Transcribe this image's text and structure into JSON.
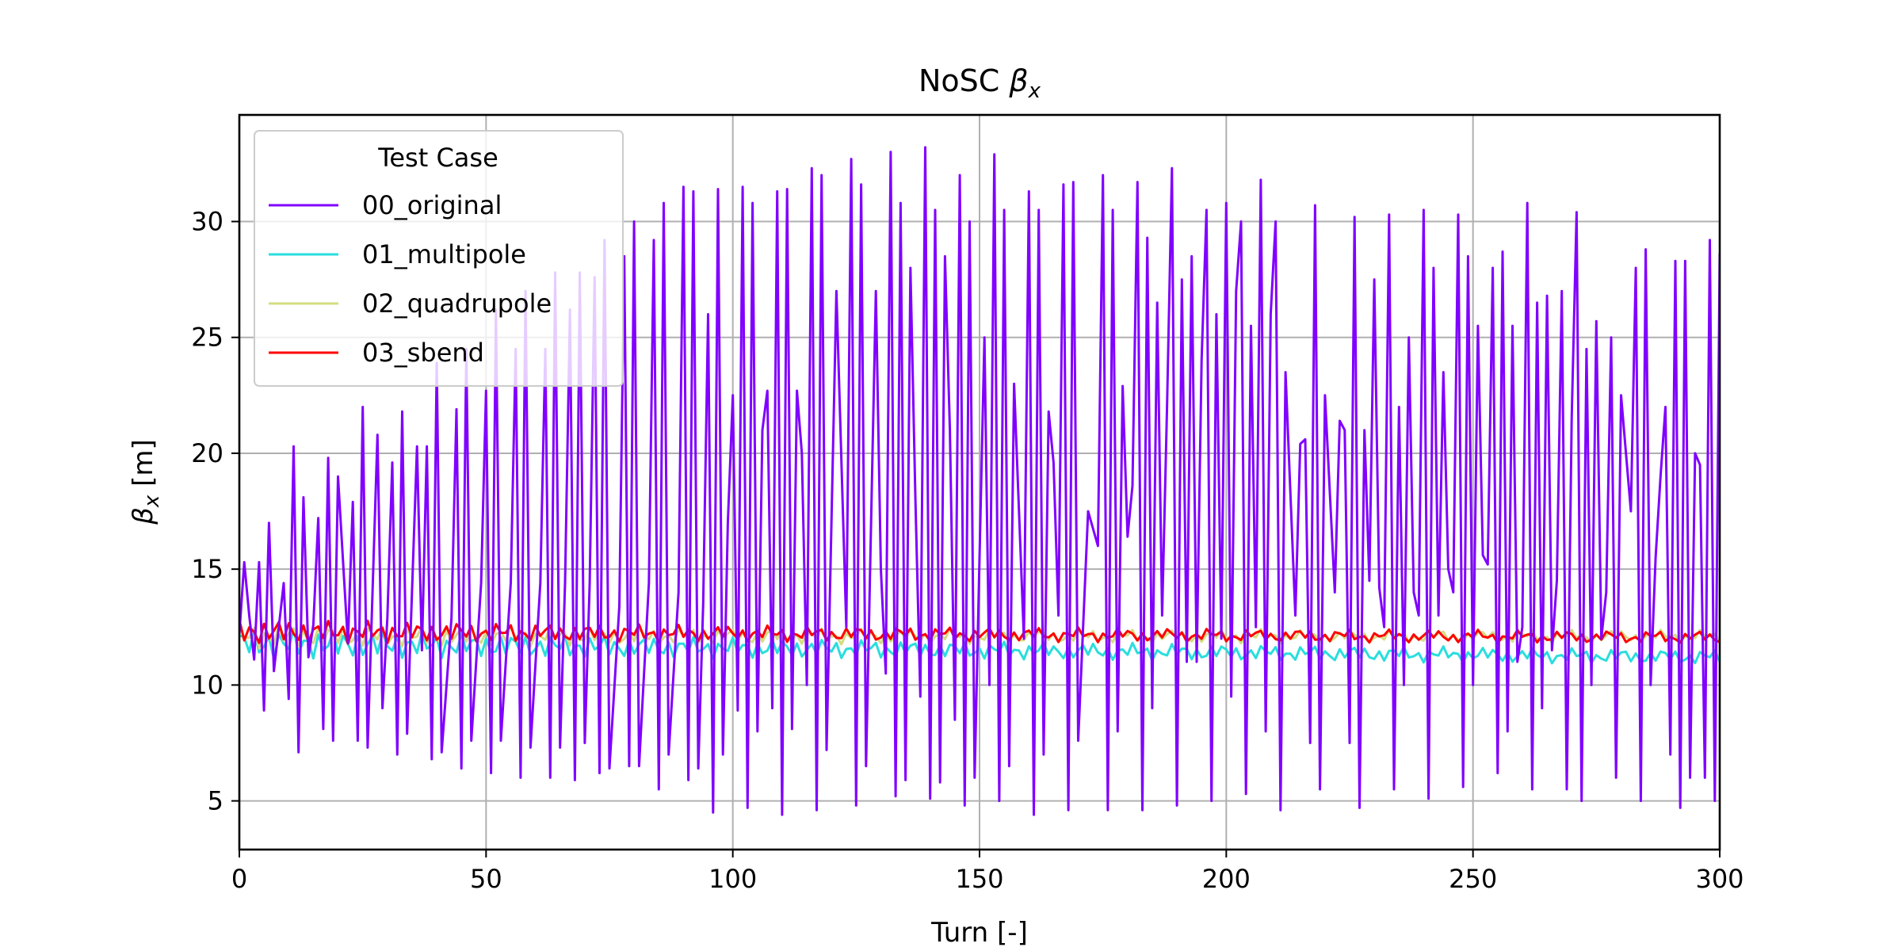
{
  "chart_data": {
    "type": "line",
    "title": "NoSC βx",
    "title_main": "NoSC",
    "title_symbol": "β",
    "title_sub": "x",
    "xlabel": "Turn [-]",
    "ylabel": "βx [m]",
    "ylabel_symbol": "β",
    "ylabel_sub": "x",
    "ylabel_unit": "[m]",
    "xlim": [
      0,
      300
    ],
    "ylim": [
      2.9,
      34.6
    ],
    "xticks": [
      0,
      50,
      100,
      150,
      200,
      250,
      300
    ],
    "yticks": [
      5,
      10,
      15,
      20,
      25,
      30
    ],
    "grid": true,
    "legend": {
      "title": "Test Case",
      "position": "top-left"
    },
    "series": [
      {
        "name": "00_original",
        "color": "#8000ff",
        "points": [
          [
            0,
            12.2
          ],
          [
            1,
            15.3
          ],
          [
            2,
            13.0
          ],
          [
            3,
            11.1
          ],
          [
            4,
            15.3
          ],
          [
            5,
            8.9
          ],
          [
            6,
            17.0
          ],
          [
            7,
            10.6
          ],
          [
            8,
            12.5
          ],
          [
            9,
            14.4
          ],
          [
            10,
            9.4
          ],
          [
            11,
            20.3
          ],
          [
            12,
            7.1
          ],
          [
            13,
            18.1
          ],
          [
            14,
            11.2
          ],
          [
            15,
            12.6
          ],
          [
            16,
            17.2
          ],
          [
            17,
            8.1
          ],
          [
            18,
            19.8
          ],
          [
            19,
            7.6
          ],
          [
            20,
            19.0
          ],
          [
            22,
            11.8
          ],
          [
            23,
            17.9
          ],
          [
            24,
            7.6
          ],
          [
            25,
            22.0
          ],
          [
            26,
            7.3
          ],
          [
            28,
            20.8
          ],
          [
            29,
            9.0
          ],
          [
            30,
            12.9
          ],
          [
            31,
            19.6
          ],
          [
            32,
            7.0
          ],
          [
            33,
            21.8
          ],
          [
            34,
            7.9
          ],
          [
            36,
            20.3
          ],
          [
            37,
            11.5
          ],
          [
            38,
            20.3
          ],
          [
            39,
            6.8
          ],
          [
            40,
            23.9
          ],
          [
            41,
            7.1
          ],
          [
            43,
            12.9
          ],
          [
            44,
            21.9
          ],
          [
            45,
            6.4
          ],
          [
            46,
            24.5
          ],
          [
            47,
            7.6
          ],
          [
            49,
            14.4
          ],
          [
            50,
            22.7
          ],
          [
            51,
            6.2
          ],
          [
            52,
            26.2
          ],
          [
            53,
            7.6
          ],
          [
            55,
            14.4
          ],
          [
            56,
            24.5
          ],
          [
            57,
            6.0
          ],
          [
            58,
            27.0
          ],
          [
            59,
            7.3
          ],
          [
            61,
            14.4
          ],
          [
            62,
            24.5
          ],
          [
            63,
            6.0
          ],
          [
            64,
            27.8
          ],
          [
            65,
            7.3
          ],
          [
            66,
            14.4
          ],
          [
            67,
            26.2
          ],
          [
            68,
            5.9
          ],
          [
            69,
            27.8
          ],
          [
            70,
            7.5
          ],
          [
            71,
            14.4
          ],
          [
            72,
            27.6
          ],
          [
            73,
            6.2
          ],
          [
            74,
            29.2
          ],
          [
            75,
            6.4
          ],
          [
            77,
            13.4
          ],
          [
            78,
            28.5
          ],
          [
            79,
            6.5
          ],
          [
            80,
            30.0
          ],
          [
            81,
            6.5
          ],
          [
            83,
            14.4
          ],
          [
            84,
            29.2
          ],
          [
            85,
            5.5
          ],
          [
            86,
            30.8
          ],
          [
            87,
            7.0
          ],
          [
            89,
            14.0
          ],
          [
            90,
            31.5
          ],
          [
            91,
            5.9
          ],
          [
            92,
            31.3
          ],
          [
            93,
            6.4
          ],
          [
            94,
            13.5
          ],
          [
            95,
            26.0
          ],
          [
            96,
            4.5
          ],
          [
            97,
            31.4
          ],
          [
            98,
            7.0
          ],
          [
            99,
            17.0
          ],
          [
            100,
            22.5
          ],
          [
            101,
            8.9
          ],
          [
            102,
            31.5
          ],
          [
            103,
            4.7
          ],
          [
            104,
            30.8
          ],
          [
            105,
            8.0
          ],
          [
            106,
            21.0
          ],
          [
            107,
            22.7
          ],
          [
            108,
            9.0
          ],
          [
            109,
            31.3
          ],
          [
            110,
            4.4
          ],
          [
            111,
            31.4
          ],
          [
            112,
            8.1
          ],
          [
            113,
            22.7
          ],
          [
            114,
            20.0
          ],
          [
            115,
            10.0
          ],
          [
            116,
            32.3
          ],
          [
            117,
            4.6
          ],
          [
            118,
            32.0
          ],
          [
            119,
            7.2
          ],
          [
            121,
            27.0
          ],
          [
            123,
            12.5
          ],
          [
            124,
            32.7
          ],
          [
            125,
            4.8
          ],
          [
            126,
            31.6
          ],
          [
            127,
            6.5
          ],
          [
            129,
            27.0
          ],
          [
            130,
            15.0
          ],
          [
            131,
            10.5
          ],
          [
            132,
            33.0
          ],
          [
            133,
            5.2
          ],
          [
            134,
            30.8
          ],
          [
            135,
            5.9
          ],
          [
            136,
            28.0
          ],
          [
            137,
            18.0
          ],
          [
            138,
            9.5
          ],
          [
            139,
            33.2
          ],
          [
            140,
            5.1
          ],
          [
            141,
            30.5
          ],
          [
            142,
            5.8
          ],
          [
            143,
            28.5
          ],
          [
            144,
            21.0
          ],
          [
            145,
            8.5
          ],
          [
            146,
            32.0
          ],
          [
            147,
            4.8
          ],
          [
            148,
            30.0
          ],
          [
            149,
            6.0
          ],
          [
            151,
            25.0
          ],
          [
            152,
            10.0
          ],
          [
            153,
            32.9
          ],
          [
            154,
            5.0
          ],
          [
            155,
            30.5
          ],
          [
            156,
            6.5
          ],
          [
            157,
            23.0
          ],
          [
            159,
            12.0
          ],
          [
            160,
            31.3
          ],
          [
            161,
            4.4
          ],
          [
            162,
            30.5
          ],
          [
            163,
            7.0
          ],
          [
            164,
            21.8
          ],
          [
            165,
            19.6
          ],
          [
            166,
            13.0
          ],
          [
            167,
            31.6
          ],
          [
            168,
            4.6
          ],
          [
            169,
            31.7
          ],
          [
            170,
            7.6
          ],
          [
            172,
            17.5
          ],
          [
            174,
            16.0
          ],
          [
            175,
            32.0
          ],
          [
            176,
            4.6
          ],
          [
            177,
            30.5
          ],
          [
            178,
            8.0
          ],
          [
            179,
            22.9
          ],
          [
            180,
            16.4
          ],
          [
            181,
            18.6
          ],
          [
            182,
            31.7
          ],
          [
            183,
            4.6
          ],
          [
            184,
            29.3
          ],
          [
            185,
            9.0
          ],
          [
            186,
            26.5
          ],
          [
            187,
            13.0
          ],
          [
            188,
            22.0
          ],
          [
            189,
            32.3
          ],
          [
            190,
            4.8
          ],
          [
            191,
            27.5
          ],
          [
            192,
            11.0
          ],
          [
            193,
            28.5
          ],
          [
            194,
            11.0
          ],
          [
            195,
            24.0
          ],
          [
            196,
            30.5
          ],
          [
            197,
            5.0
          ],
          [
            198,
            26.0
          ],
          [
            199,
            12.0
          ],
          [
            200,
            30.8
          ],
          [
            201,
            9.5
          ],
          [
            202,
            27.0
          ],
          [
            203,
            30.0
          ],
          [
            204,
            5.3
          ],
          [
            205,
            25.5
          ],
          [
            206,
            12.5
          ],
          [
            207,
            31.8
          ],
          [
            208,
            8.0
          ],
          [
            209,
            26.0
          ],
          [
            210,
            30.0
          ],
          [
            211,
            4.6
          ],
          [
            212,
            23.5
          ],
          [
            214,
            13.0
          ],
          [
            215,
            20.4
          ],
          [
            216,
            20.6
          ],
          [
            217,
            7.5
          ],
          [
            218,
            30.7
          ],
          [
            219,
            5.5
          ],
          [
            220,
            22.5
          ],
          [
            222,
            14.0
          ],
          [
            223,
            21.4
          ],
          [
            224,
            21.0
          ],
          [
            225,
            7.5
          ],
          [
            226,
            30.2
          ],
          [
            227,
            4.7
          ],
          [
            228,
            21.0
          ],
          [
            229,
            14.5
          ],
          [
            230,
            27.5
          ],
          [
            231,
            14.2
          ],
          [
            232,
            12.5
          ],
          [
            233,
            30.3
          ],
          [
            234,
            5.5
          ],
          [
            235,
            22.0
          ],
          [
            236,
            10.0
          ],
          [
            237,
            25.0
          ],
          [
            238,
            14.0
          ],
          [
            239,
            13.0
          ],
          [
            240,
            30.5
          ],
          [
            241,
            5.1
          ],
          [
            242,
            28.0
          ],
          [
            243,
            13.0
          ],
          [
            244,
            23.5
          ],
          [
            245,
            15.0
          ],
          [
            246,
            14.0
          ],
          [
            247,
            30.3
          ],
          [
            248,
            5.6
          ],
          [
            249,
            28.5
          ],
          [
            250,
            10.0
          ],
          [
            251,
            25.5
          ],
          [
            252,
            15.6
          ],
          [
            253,
            15.2
          ],
          [
            254,
            28.0
          ],
          [
            255,
            6.2
          ],
          [
            256,
            28.7
          ],
          [
            257,
            8.0
          ],
          [
            258,
            25.5
          ],
          [
            259,
            11.0
          ],
          [
            260,
            12.5
          ],
          [
            261,
            30.8
          ],
          [
            262,
            5.5
          ],
          [
            263,
            26.5
          ],
          [
            264,
            9.0
          ],
          [
            265,
            26.8
          ],
          [
            266,
            11.5
          ],
          [
            267,
            14.5
          ],
          [
            268,
            27.0
          ],
          [
            269,
            5.5
          ],
          [
            270,
            21.5
          ],
          [
            271,
            30.4
          ],
          [
            272,
            5.0
          ],
          [
            273,
            24.5
          ],
          [
            274,
            10.0
          ],
          [
            275,
            25.7
          ],
          [
            276,
            12.0
          ],
          [
            277,
            14.0
          ],
          [
            278,
            25.0
          ],
          [
            279,
            6.0
          ],
          [
            280,
            22.5
          ],
          [
            282,
            17.5
          ],
          [
            283,
            28.0
          ],
          [
            284,
            5.0
          ],
          [
            285,
            28.8
          ],
          [
            286,
            10.0
          ],
          [
            287,
            15.5
          ],
          [
            288,
            19.0
          ],
          [
            289,
            22.0
          ],
          [
            290,
            7.0
          ],
          [
            291,
            28.3
          ],
          [
            292,
            4.7
          ],
          [
            293,
            28.3
          ],
          [
            294,
            6.0
          ],
          [
            295,
            20.0
          ],
          [
            296,
            19.5
          ],
          [
            297,
            6.0
          ],
          [
            298,
            29.2
          ],
          [
            299,
            5.0
          ],
          [
            300,
            28.6
          ],
          [
            301,
            8.8
          ]
        ]
      },
      {
        "name": "01_multipole",
        "color": "#2adddd",
        "base": 11.8,
        "amp": 0.6,
        "drift": -0.002,
        "phase": 0.5
      },
      {
        "name": "02_quadrupole",
        "color": "#d4dd80",
        "base": 12.1,
        "amp": 0.45,
        "drift": 0.0,
        "phase": 1.2
      },
      {
        "name": "03_sbend",
        "color": "#ff0000",
        "base": 12.3,
        "amp": 0.45,
        "drift": -0.0008,
        "phase": 2.0
      }
    ]
  }
}
